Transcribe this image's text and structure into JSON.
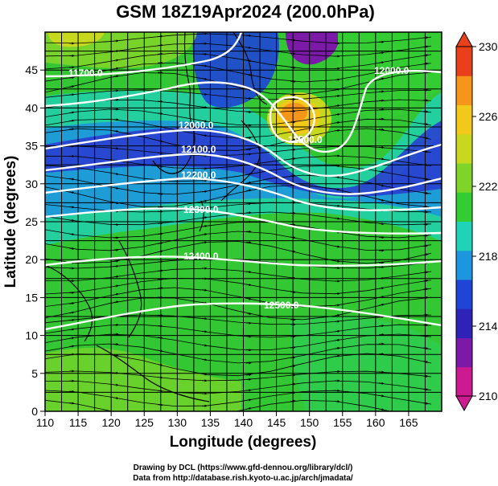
{
  "title": "GSM 18Z19Apr2024 (200.0hPa)",
  "x_axis": {
    "label": "Longitude (degrees)",
    "range": [
      110,
      170
    ],
    "ticks": [
      "110",
      "115",
      "120",
      "125",
      "130",
      "135",
      "140",
      "145",
      "150",
      "155",
      "160",
      "165"
    ]
  },
  "y_axis": {
    "label": "Latitude  (degrees)",
    "range": [
      0,
      50
    ],
    "ticks": [
      "0",
      "5",
      "10",
      "15",
      "20",
      "25",
      "30",
      "35",
      "40",
      "45"
    ]
  },
  "colorbar": {
    "range": [
      210,
      230
    ],
    "labels": [
      "230",
      "226",
      "222",
      "218",
      "214",
      "210"
    ],
    "colors": [
      "#cc1a90",
      "#7a1aa6",
      "#2e22b8",
      "#1f44d6",
      "#1e96dd",
      "#1fd2b8",
      "#33cc33",
      "#7fd42a",
      "#c8d81f",
      "#f2c81a",
      "#f5961a",
      "#e8401a"
    ]
  },
  "contours": [
    {
      "label": "11700.0"
    },
    {
      "label": "12000.0"
    },
    {
      "label": "12000.0"
    },
    {
      "label": "12100.0"
    },
    {
      "label": "12200.0"
    },
    {
      "label": "12300.0"
    },
    {
      "label": "12400.0"
    },
    {
      "label": "12500.0"
    },
    {
      "label": "11500.0"
    }
  ],
  "credits": {
    "line1": "Drawing by DCL (https://www.gfd-dennou.org/library/dcl/)",
    "line2": "Data from http://database.rish.kyoto-u.ac.jp/arch/jmadata/"
  }
}
